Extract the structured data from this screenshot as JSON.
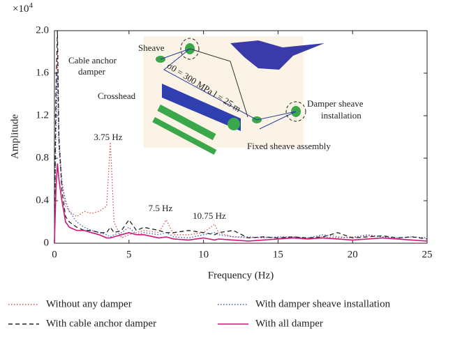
{
  "chart_data": {
    "type": "line",
    "x_label": "Frequency (Hz)",
    "y_label": "Amplitude",
    "y_multiplier": {
      "base": "×10",
      "exponent": "4"
    },
    "xlim": [
      0,
      25
    ],
    "xticks": [
      0,
      5,
      10,
      15,
      20,
      25
    ],
    "ylim": [
      0,
      2
    ],
    "yticks": [
      0,
      0.4,
      0.8,
      1.2,
      1.6,
      {
        "value": 2,
        "label": "2.0"
      }
    ],
    "x": [
      0,
      0.1,
      0.2,
      0.3,
      0.5,
      0.75,
      1,
      1.5,
      2,
      2.5,
      3,
      3.5,
      3.75,
      4,
      4.5,
      5,
      5.5,
      6,
      7,
      7.5,
      8,
      9,
      10,
      10.75,
      11,
      12,
      13,
      14,
      15,
      16,
      17,
      18,
      19,
      20,
      21,
      22,
      23,
      24,
      25
    ],
    "series": [
      {
        "name": "Without any damper",
        "color": "#d9534f",
        "dash": "dotted",
        "values": [
          0,
          1.2,
          1.8,
          1.0,
          0.6,
          0.35,
          0.3,
          0.25,
          0.3,
          0.28,
          0.3,
          0.35,
          0.95,
          0.2,
          0.05,
          0.08,
          0.1,
          0.12,
          0.1,
          0.22,
          0.08,
          0.08,
          0.1,
          0.18,
          0.1,
          0.06,
          0.05,
          0.06,
          0.05,
          0.06,
          0.05,
          0.06,
          0.05,
          0.06,
          0.07,
          0.06,
          0.05,
          0.06,
          0.05
        ]
      },
      {
        "name": "With  damper sheave installation",
        "color": "#3b5bbf",
        "dash": "dotted",
        "values": [
          0,
          1.0,
          1.6,
          0.9,
          0.55,
          0.4,
          0.3,
          0.2,
          0.15,
          0.12,
          0.1,
          0.08,
          0.06,
          0.08,
          0.1,
          0.15,
          0.08,
          0.1,
          0.08,
          0.1,
          0.06,
          0.05,
          0.08,
          0.1,
          0.08,
          0.06,
          0.06,
          0.05,
          0.06,
          0.06,
          0.05,
          0.08,
          0.06,
          0.05,
          0.08,
          0.06,
          0.05,
          0.06,
          0.05
        ]
      },
      {
        "name": "With cable anchor damper",
        "color": "#222222",
        "dash": "dashed",
        "values": [
          0,
          1.4,
          2.0,
          1.0,
          0.5,
          0.25,
          0.2,
          0.15,
          0.12,
          0.12,
          0.1,
          0.1,
          0.15,
          0.1,
          0.12,
          0.22,
          0.12,
          0.15,
          0.12,
          0.1,
          0.1,
          0.12,
          0.1,
          0.08,
          0.1,
          0.12,
          0.05,
          0.06,
          0.05,
          0.06,
          0.05,
          0.06,
          0.1,
          0.05,
          0.06,
          0.07,
          0.05,
          0.06,
          0.04
        ]
      },
      {
        "name": "With all damper",
        "color": "#d4147a",
        "dash": "solid",
        "values": [
          0,
          0.5,
          0.75,
          0.6,
          0.4,
          0.2,
          0.15,
          0.12,
          0.12,
          0.1,
          0.08,
          0.05,
          0.05,
          0.06,
          0.08,
          0.1,
          0.08,
          0.08,
          0.05,
          0.06,
          0.04,
          0.03,
          0.05,
          0.03,
          0.04,
          0.03,
          0.02,
          0.03,
          0.04,
          0.05,
          0.04,
          0.05,
          0.04,
          0.03,
          0.04,
          0.05,
          0.04,
          0.03,
          0.02
        ]
      }
    ],
    "annotations": [
      "3.75 Hz",
      "7.5 Hz",
      "10.75 Hz"
    ]
  },
  "diagram": {
    "labels": [
      "Sheave",
      "Cable anchor",
      "damper",
      "Crosshead",
      "σ0 = 300 MPa l = 25 m",
      "Damper sheave",
      "installation",
      "Fixed sheave assembly"
    ]
  }
}
